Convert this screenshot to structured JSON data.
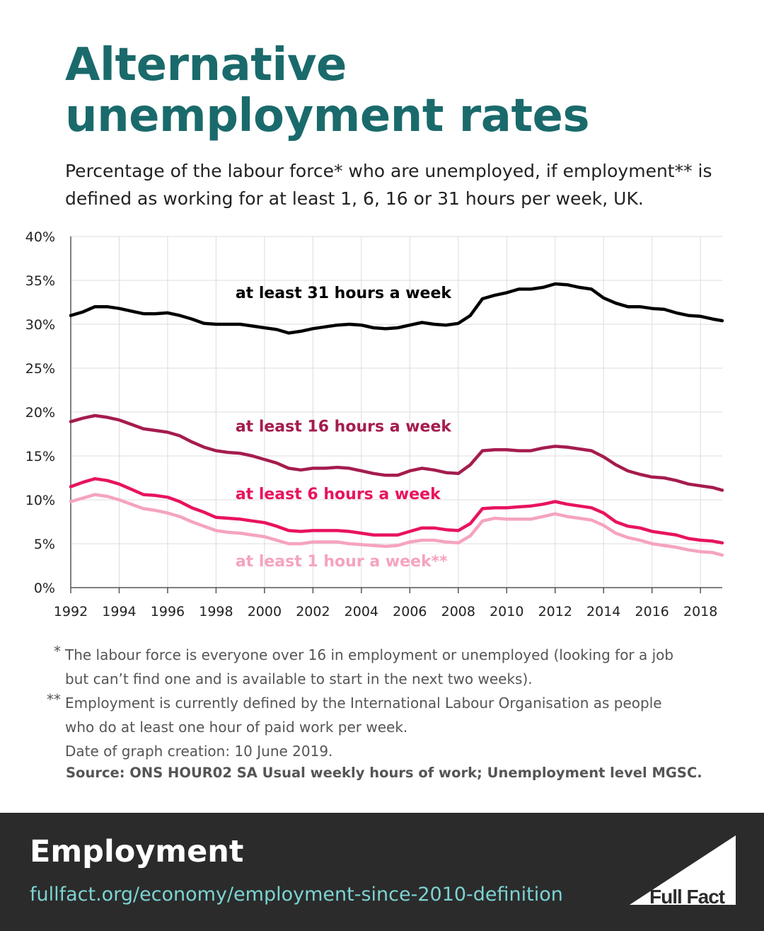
{
  "header": {
    "title": "Alternative unemployment rates",
    "subtitle": "Percentage of the labour force* who are unemployed, if employment** is defined as working for at least 1, 6, 16 or 31 hours per week, UK."
  },
  "chart_data": {
    "type": "line",
    "title": "",
    "xlabel": "",
    "ylabel": "",
    "xlim": [
      1992,
      2018.9
    ],
    "ylim": [
      0,
      40
    ],
    "x_ticks": [
      "1992",
      "1994",
      "1996",
      "1998",
      "2000",
      "2002",
      "2004",
      "2006",
      "2008",
      "2010",
      "2012",
      "2014",
      "2016",
      "2018"
    ],
    "y_ticks": [
      "0%",
      "5%",
      "10%",
      "15%",
      "20%",
      "25%",
      "30%",
      "35%",
      "40%"
    ],
    "grid": true,
    "x": [
      1992,
      1992.5,
      1993,
      1993.5,
      1994,
      1994.5,
      1995,
      1995.5,
      1996,
      1996.5,
      1997,
      1997.5,
      1998,
      1998.5,
      1999,
      1999.5,
      2000,
      2000.5,
      2001,
      2001.5,
      2002,
      2002.5,
      2003,
      2003.5,
      2004,
      2004.5,
      2005,
      2005.5,
      2006,
      2006.5,
      2007,
      2007.5,
      2008,
      2008.5,
      2009,
      2009.5,
      2010,
      2010.5,
      2011,
      2011.5,
      2012,
      2012.5,
      2013,
      2013.5,
      2014,
      2014.5,
      2015,
      2015.5,
      2016,
      2016.5,
      2017,
      2017.5,
      2018,
      2018.5,
      2018.9
    ],
    "series": [
      {
        "name": "at least 31 hours a week",
        "color": "#000000",
        "values": [
          31.0,
          31.4,
          32.0,
          32.0,
          31.8,
          31.5,
          31.2,
          31.2,
          31.3,
          31.0,
          30.6,
          30.1,
          30.0,
          30.0,
          30.0,
          29.8,
          29.6,
          29.4,
          29.0,
          29.2,
          29.5,
          29.7,
          29.9,
          30.0,
          29.9,
          29.6,
          29.5,
          29.6,
          29.9,
          30.2,
          30.0,
          29.9,
          30.1,
          31.0,
          32.9,
          33.3,
          33.6,
          34.0,
          34.0,
          34.2,
          34.6,
          34.5,
          34.2,
          34.0,
          33.0,
          32.4,
          32.0,
          32.0,
          31.8,
          31.7,
          31.3,
          31.0,
          30.9,
          30.6,
          30.4
        ]
      },
      {
        "name": "at least 16 hours a week",
        "color": "#a51c4e",
        "values": [
          18.9,
          19.3,
          19.6,
          19.4,
          19.1,
          18.6,
          18.1,
          17.9,
          17.7,
          17.3,
          16.6,
          16.0,
          15.6,
          15.4,
          15.3,
          15.0,
          14.6,
          14.2,
          13.6,
          13.4,
          13.6,
          13.6,
          13.7,
          13.6,
          13.3,
          13.0,
          12.8,
          12.8,
          13.3,
          13.6,
          13.4,
          13.1,
          13.0,
          14.0,
          15.6,
          15.7,
          15.7,
          15.6,
          15.6,
          15.9,
          16.1,
          16.0,
          15.8,
          15.6,
          14.9,
          14.0,
          13.3,
          12.9,
          12.6,
          12.5,
          12.2,
          11.8,
          11.6,
          11.4,
          11.1
        ]
      },
      {
        "name": "at least 6 hours a week",
        "color": "#e8135f",
        "values": [
          11.5,
          12.0,
          12.4,
          12.2,
          11.8,
          11.2,
          10.6,
          10.5,
          10.3,
          9.8,
          9.1,
          8.6,
          8.0,
          7.9,
          7.8,
          7.6,
          7.4,
          7.0,
          6.5,
          6.4,
          6.5,
          6.5,
          6.5,
          6.4,
          6.2,
          6.0,
          6.0,
          6.0,
          6.4,
          6.8,
          6.8,
          6.6,
          6.5,
          7.3,
          9.0,
          9.1,
          9.1,
          9.2,
          9.3,
          9.5,
          9.8,
          9.5,
          9.3,
          9.1,
          8.5,
          7.5,
          7.0,
          6.8,
          6.4,
          6.2,
          6.0,
          5.6,
          5.4,
          5.3,
          5.1
        ]
      },
      {
        "name": "at least 1 hour a week**",
        "color": "#f5a3c0",
        "values": [
          9.8,
          10.2,
          10.6,
          10.4,
          10.0,
          9.5,
          9.0,
          8.8,
          8.5,
          8.1,
          7.5,
          7.0,
          6.5,
          6.3,
          6.2,
          6.0,
          5.8,
          5.4,
          5.0,
          5.0,
          5.2,
          5.2,
          5.2,
          5.0,
          4.9,
          4.8,
          4.7,
          4.8,
          5.2,
          5.4,
          5.4,
          5.2,
          5.1,
          5.9,
          7.6,
          7.9,
          7.8,
          7.8,
          7.8,
          8.1,
          8.4,
          8.1,
          7.9,
          7.7,
          7.1,
          6.2,
          5.7,
          5.4,
          5.0,
          4.8,
          4.6,
          4.3,
          4.1,
          4.0,
          3.7
        ]
      }
    ],
    "series_labels": [
      "at least 31 hours a week",
      "at least 16 hours a week",
      "at least 6 hours a week",
      "at least 1 hour a week**"
    ]
  },
  "notes": {
    "note1_mark": "*",
    "note1_line1": "The labour force is everyone over 16 in employment or unemployed (looking for a job",
    "note1_line2": "but can’t find one and is available to start in the next two weeks).",
    "note2_mark": "**",
    "note2_line1": "Employment is currently defined by the International Labour Organisation as people",
    "note2_line2": "who do at least one hour of paid work per week.",
    "date_line": "Date of graph creation: 10 June 2019.",
    "source": "Source: ONS HOUR02 SA Usual weekly hours of work; Unemployment level MGSC."
  },
  "footer": {
    "topic": "Employment",
    "url": "fullfact.org/economy/employment-since-2010-definition",
    "logo_text": "Full Fact",
    "background": "#2b2b2b"
  },
  "colors": {
    "title": "#1a6a6c",
    "url": "#7dd3d3"
  }
}
